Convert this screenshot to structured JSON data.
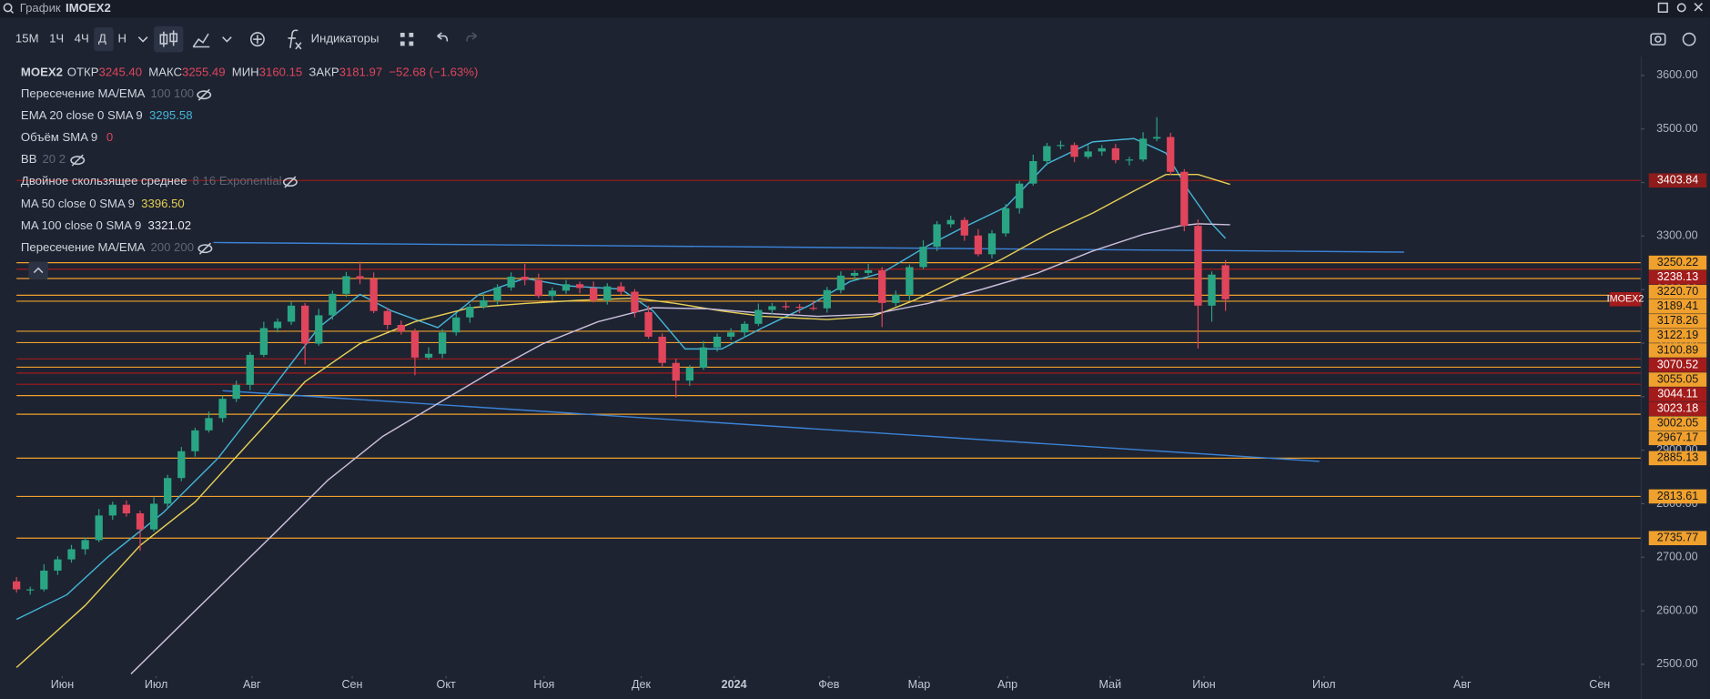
{
  "header": {
    "title": "График",
    "symbol": "IMOEX2"
  },
  "toolbar": {
    "timeframes": [
      "15М",
      "1Ч",
      "4Ч",
      "Д",
      "Н"
    ],
    "indicators_button": "Индикаторы"
  },
  "legend": {
    "symbol": "MOEX2",
    "fields": [
      "ОТКР",
      "МАКС",
      "МИН",
      "ЗАКР"
    ],
    "open_value_label": "3245.40",
    "change": "−52.68 (−1.63%)",
    "indicators": [
      {
        "name": "Пересечение MA/EMA",
        "params": "100 100"
      },
      {
        "name": "Объём SMA 9",
        "value": 0
      },
      {
        "name": "BB",
        "params": "20 2"
      },
      {
        "name": "Двойное скользящее среднее",
        "params": "8 16 Exponential"
      },
      {
        "name": "Пересечение MA/EMA",
        "params": "200 200"
      }
    ]
  },
  "chart_data": {
    "type": "candlestick",
    "price_tag": "IMOEX2",
    "up_color": "#2aa584",
    "down_color": "#e0455c",
    "xlim": [
      -3.57,
      354.76
    ],
    "ylim": [
      2478,
      3635
    ],
    "xticks": [
      {
        "value": 10,
        "label": "Июн"
      },
      {
        "value": 30.5,
        "label": "Июл"
      },
      {
        "value": 51.4,
        "label": "Авг"
      },
      {
        "value": 73.3,
        "label": "Сен"
      },
      {
        "value": 93.8,
        "label": "Окт"
      },
      {
        "value": 115.2,
        "label": "Ноя"
      },
      {
        "value": 136.4,
        "label": "Дек"
      },
      {
        "value": 156.7,
        "label": "2024"
      },
      {
        "value": 177.4,
        "label": "Фев"
      },
      {
        "value": 197.1,
        "label": "Мар"
      },
      {
        "value": 216.4,
        "label": "Апр"
      },
      {
        "value": 238.8,
        "label": "Май"
      },
      {
        "value": 259.3,
        "label": "Июн"
      },
      {
        "value": 285.5,
        "label": "Июл"
      },
      {
        "value": 315.7,
        "label": "Авг"
      },
      {
        "value": 345.7,
        "label": "Сен"
      }
    ],
    "yticks": [
      {
        "value": 2500,
        "label": "2500.00"
      },
      {
        "value": 2600,
        "label": "2600.00"
      },
      {
        "value": 2700,
        "label": "2700.00"
      },
      {
        "value": 2800,
        "label": "2800.00"
      },
      {
        "value": 2900,
        "label": "2900.00"
      },
      {
        "value": 3000,
        "label": "3000.00"
      },
      {
        "value": 3100,
        "label": "3100.00"
      },
      {
        "value": 3200,
        "label": "3200.00"
      },
      {
        "value": 3300,
        "label": "3300.00"
      },
      {
        "value": 3400,
        "label": "3400.00"
      },
      {
        "value": 3500,
        "label": "3500.00"
      },
      {
        "value": 3600,
        "label": "3600.00"
      }
    ],
    "x": [
      0,
      3,
      6,
      9,
      12,
      15,
      18,
      21,
      24,
      27,
      30,
      33,
      36,
      39,
      42,
      45,
      48,
      51,
      54,
      57,
      60,
      63,
      66,
      69,
      72,
      75,
      78,
      81,
      84,
      87,
      90,
      93,
      96,
      99,
      102,
      105,
      108,
      111,
      114,
      117,
      120,
      123,
      126,
      129,
      132,
      135,
      138,
      141,
      144,
      147,
      150,
      153,
      156,
      159,
      162,
      165,
      168,
      171,
      174,
      177,
      180,
      183,
      186,
      189,
      192,
      195,
      198,
      201,
      204,
      207,
      210,
      213,
      216,
      219,
      222,
      225,
      228,
      231,
      234,
      237,
      240,
      243,
      246,
      249,
      252,
      255,
      258,
      261,
      264
    ],
    "open": [
      2655,
      2640,
      2640,
      2675,
      2696,
      2715,
      2732,
      2778,
      2798,
      2782,
      2752,
      2800,
      2848,
      2898,
      2937,
      2960,
      2996,
      3022,
      3078,
      3128,
      3140,
      3170,
      3099,
      3152,
      3192,
      3225,
      3220,
      3160,
      3134,
      3122,
      3073,
      3080,
      3120,
      3148,
      3168,
      3180,
      3204,
      3224,
      3218,
      3188,
      3198,
      3210,
      3203,
      3180,
      3206,
      3196,
      3158,
      3112,
      3063,
      3030,
      3054,
      3092,
      3112,
      3120,
      3136,
      3162,
      3169,
      3168,
      3166,
      3165,
      3199,
      3226,
      3231,
      3236,
      3175,
      3190,
      3242,
      3280,
      3322,
      3330,
      3301,
      3266,
      3305,
      3352,
      3398,
      3440,
      3468,
      3470,
      3448,
      3458,
      3464,
      3442,
      3443,
      3482,
      3485,
      3420,
      3319,
      3170,
      3245.4
    ],
    "high": [
      2663,
      2645,
      2687,
      2702,
      2723,
      2737,
      2790,
      2804,
      2806,
      2787,
      2812,
      2854,
      2906,
      2942,
      2972,
      3002,
      3030,
      3083,
      3140,
      3146,
      3178,
      3175,
      3164,
      3198,
      3233,
      3252,
      3232,
      3166,
      3142,
      3127,
      3092,
      3126,
      3156,
      3173,
      3192,
      3210,
      3232,
      3248,
      3230,
      3204,
      3218,
      3215,
      3215,
      3212,
      3214,
      3201,
      3170,
      3118,
      3071,
      3059,
      3104,
      3118,
      3128,
      3141,
      3174,
      3175,
      3177,
      3173,
      3178,
      3205,
      3234,
      3236,
      3248,
      3242,
      3198,
      3247,
      3292,
      3328,
      3338,
      3335,
      3313,
      3311,
      3360,
      3403,
      3452,
      3474,
      3478,
      3475,
      3470,
      3470,
      3472,
      3448,
      3494,
      3522,
      3493,
      3425,
      3331,
      3234,
      3255.49
    ],
    "low": [
      2634,
      2630,
      2636,
      2667,
      2690,
      2705,
      2728,
      2770,
      2776,
      2712,
      2748,
      2792,
      2842,
      2888,
      2933,
      2952,
      2990,
      3012,
      3074,
      3120,
      3134,
      3060,
      3095,
      3144,
      3186,
      3210,
      3156,
      3126,
      3116,
      3040,
      3069,
      3072,
      3114,
      3138,
      3164,
      3172,
      3198,
      3208,
      3184,
      3180,
      3192,
      3193,
      3176,
      3172,
      3190,
      3148,
      3108,
      3055,
      2998,
      3020,
      3050,
      3084,
      3106,
      3110,
      3132,
      3154,
      3162,
      3156,
      3161,
      3157,
      3193,
      3216,
      3227,
      3130,
      3169,
      3180,
      3238,
      3272,
      3316,
      3291,
      3262,
      3258,
      3299,
      3342,
      3394,
      3432,
      3462,
      3438,
      3444,
      3450,
      3436,
      3432,
      3439,
      3477,
      3414,
      3309,
      3090,
      3140,
      3160.15
    ],
    "close": [
      2640,
      2640,
      2675,
      2696,
      2715,
      2732,
      2778,
      2798,
      2782,
      2752,
      2800,
      2848,
      2898,
      2937,
      2960,
      2996,
      3022,
      3078,
      3128,
      3140,
      3170,
      3099,
      3152,
      3192,
      3225,
      3220,
      3160,
      3134,
      3122,
      3073,
      3080,
      3120,
      3148,
      3168,
      3180,
      3204,
      3224,
      3218,
      3188,
      3198,
      3210,
      3203,
      3180,
      3206,
      3196,
      3158,
      3112,
      3063,
      3030,
      3054,
      3092,
      3112,
      3120,
      3136,
      3162,
      3169,
      3168,
      3166,
      3165,
      3199,
      3226,
      3231,
      3236,
      3175,
      3190,
      3242,
      3280,
      3322,
      3330,
      3301,
      3266,
      3305,
      3352,
      3398,
      3440,
      3468,
      3470,
      3448,
      3458,
      3464,
      3442,
      3443,
      3482,
      3485,
      3420,
      3319,
      3170,
      3228,
      3181.97
    ],
    "series": [
      {
        "name": "EMA 20 close 0 SMA 9",
        "color": "#45b4d6",
        "x": [
          0,
          11,
          20,
          32,
          44,
          56,
          66,
          75,
          82,
          92,
          101,
          111,
          120,
          132,
          139,
          146,
          154,
          163,
          173,
          182,
          189,
          199,
          206,
          216,
          225,
          235,
          244,
          251,
          256,
          261,
          264
        ],
        "values": [
          2584,
          2630,
          2701,
          2783,
          2885,
          3017,
          3129,
          3191,
          3160,
          3129,
          3191,
          3221,
          3207,
          3201,
          3160,
          3089,
          3089,
          3129,
          3170,
          3215,
          3231,
          3282,
          3313,
          3354,
          3435,
          3476,
          3482,
          3455,
          3384,
          3323,
          3295.58
        ]
      },
      {
        "name": "MA 50 close 0 SMA 9",
        "color": "#e6cf55",
        "value_label": "3396.50",
        "x": [
          0,
          15,
          27,
          39,
          51,
          63,
          75,
          87,
          99,
          111,
          123,
          135,
          144,
          154,
          163,
          177,
          187,
          196,
          206,
          215,
          225,
          235,
          244,
          251,
          258,
          265
        ],
        "values": [
          2494,
          2610,
          2722,
          2803,
          2916,
          3028,
          3099,
          3140,
          3166,
          3174,
          3180,
          3184,
          3174,
          3160,
          3150,
          3144,
          3150,
          3180,
          3221,
          3256,
          3303,
          3343,
          3384,
          3415,
          3415,
          3396.5
        ]
      },
      {
        "name": "MA 100 close 0 SMA 9",
        "color": "#cbbedb",
        "x": [
          25,
          39,
          56,
          68,
          80,
          92,
          104,
          115,
          127,
          139,
          151,
          163,
          175,
          187,
          199,
          211,
          223,
          235,
          246,
          254,
          258,
          265
        ],
        "values": [
          2482,
          2600,
          2742,
          2844,
          2926,
          2987,
          3048,
          3099,
          3140,
          3166,
          3164,
          3156,
          3150,
          3154,
          3174,
          3201,
          3231,
          3272,
          3303,
          3319,
          3323,
          3321.02
        ]
      }
    ],
    "trendlines": [
      {
        "color": "#3b82d6",
        "x": [
          43,
          303
        ],
        "values": [
          3288,
          3270
        ]
      },
      {
        "color": "#3b82d6",
        "x": [
          45,
          284.5
        ],
        "values": [
          3011,
          2879
        ]
      }
    ],
    "levels": [
      {
        "value": 3403.84,
        "color": "#8e1c1c"
      },
      {
        "value": 3250.22,
        "color": "#f0a02c"
      },
      {
        "value": 3238.13,
        "color": "#a31b1b"
      },
      {
        "value": 3220.7,
        "label": "3220.70",
        "color": "#f0a02c"
      },
      {
        "value": 3189.41,
        "color": "#f0a02c"
      },
      {
        "value": 3178.26,
        "color": "#f0a02c"
      },
      {
        "value": 3122.19,
        "color": "#f0a02c"
      },
      {
        "value": 3100.89,
        "color": "#f0a02c"
      },
      {
        "value": 3070.52,
        "color": "#a31b1b"
      },
      {
        "value": 3055.05,
        "color": "#f0a02c"
      },
      {
        "value": 3044.11,
        "color": "#a31b1b"
      },
      {
        "value": 3023.18,
        "color": "#a31b1b"
      },
      {
        "value": 3002.05,
        "color": "#f0a02c"
      },
      {
        "value": 2967.17,
        "color": "#f0a02c"
      },
      {
        "value": 2885.13,
        "color": "#f0a02c"
      },
      {
        "value": 2813.61,
        "color": "#f0a02c"
      },
      {
        "value": 2735.77,
        "color": "#f0a02c"
      }
    ]
  }
}
